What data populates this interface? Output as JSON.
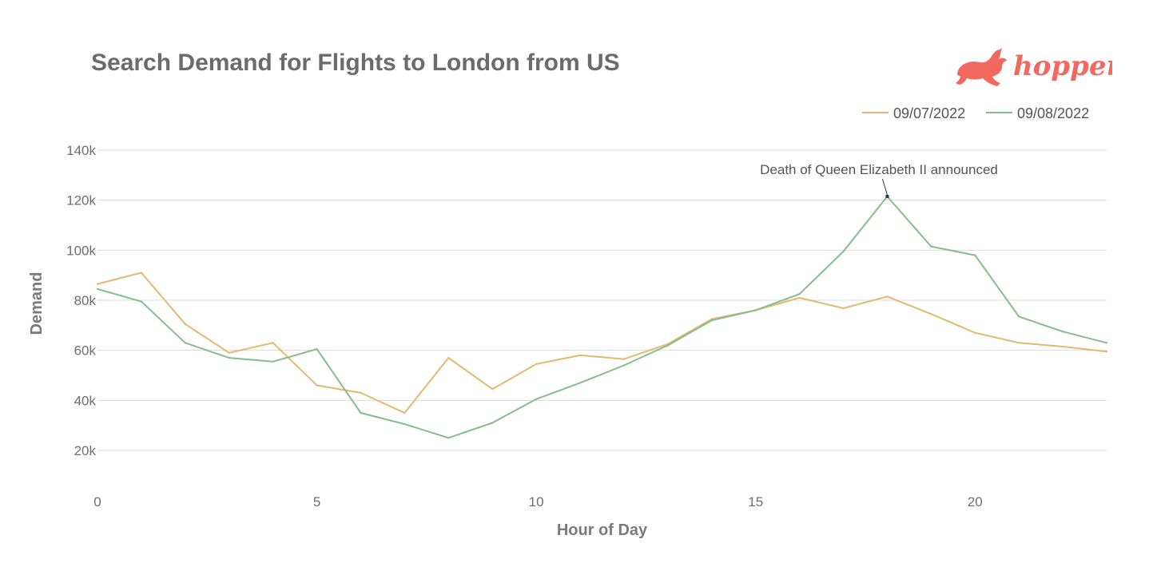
{
  "brand": {
    "logo_text": "hopper",
    "logo_color": "#f0685e"
  },
  "chart_data": {
    "type": "line",
    "title": "Search Demand for Flights to London from US",
    "xlabel": "Hour of Day",
    "ylabel": "Demand",
    "x": [
      0,
      1,
      2,
      3,
      4,
      5,
      6,
      7,
      8,
      9,
      10,
      11,
      12,
      13,
      14,
      15,
      16,
      17,
      18,
      19,
      20,
      21,
      22,
      23
    ],
    "xlim": [
      0,
      23
    ],
    "ylim": [
      0,
      140000
    ],
    "x_ticks": [
      0,
      5,
      10,
      15,
      20
    ],
    "y_ticks": [
      20000,
      40000,
      60000,
      80000,
      100000,
      120000,
      140000
    ],
    "y_tick_labels": [
      "20k",
      "40k",
      "60k",
      "80k",
      "100k",
      "120k",
      "140k"
    ],
    "grid": "horizontal",
    "legend_position": "top-right",
    "series": [
      {
        "name": "09/07/2022",
        "color": "#e3b96f",
        "values": [
          86500,
          91000,
          70500,
          59000,
          63000,
          46000,
          43000,
          35000,
          57000,
          44500,
          54500,
          58000,
          56500,
          62500,
          72500,
          76000,
          81000,
          76800,
          81500,
          74500,
          67000,
          63000,
          61500,
          59500
        ]
      },
      {
        "name": "09/08/2022",
        "color": "#86bd8c",
        "values": [
          84500,
          79500,
          63000,
          57000,
          55500,
          60500,
          35000,
          30500,
          25000,
          31000,
          40500,
          47000,
          54000,
          62000,
          72000,
          76000,
          82500,
          99500,
          121500,
          101500,
          98000,
          73500,
          67500,
          63000
        ]
      }
    ],
    "annotations": [
      {
        "text": "Death of Queen Elizabeth II announced",
        "x": 18,
        "y": 121500,
        "series": "09/08/2022"
      }
    ]
  }
}
